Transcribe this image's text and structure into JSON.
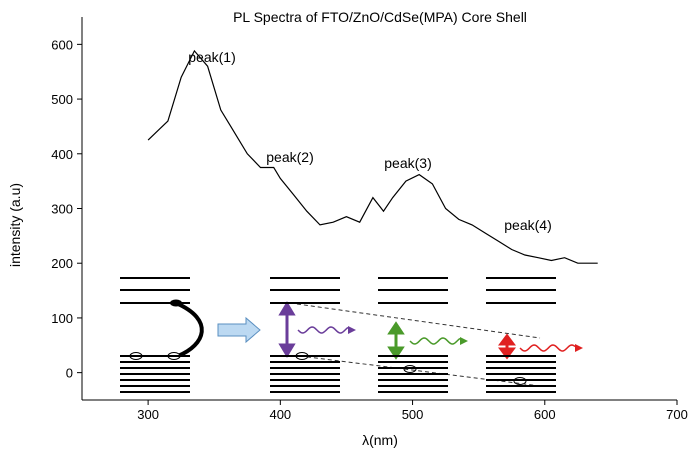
{
  "chart_data": {
    "type": "line",
    "title": "PL Spectra of  FTO/ZnO/CdSe(MPA) Core Shell",
    "x_label": "λ(nm)",
    "y_label": "intensity (a.u)",
    "xlim": [
      250,
      700
    ],
    "ylim": [
      -50,
      650
    ],
    "xticks": [
      300,
      400,
      500,
      600,
      700
    ],
    "yticks": [
      0,
      100,
      200,
      300,
      400,
      500,
      600
    ],
    "annotations": [
      "peak(1)",
      "peak(2)",
      "peak(3)",
      "peak(4)"
    ],
    "series": [
      {
        "color": "#000000",
        "x": [
          300,
          315,
          325,
          335,
          345,
          355,
          365,
          375,
          385,
          395,
          400,
          410,
          420,
          430,
          440,
          450,
          460,
          470,
          478,
          485,
          495,
          505,
          515,
          525,
          535,
          545,
          555,
          565,
          575,
          585,
          595,
          605,
          615,
          625,
          640
        ],
        "values": [
          425,
          460,
          540,
          588,
          560,
          480,
          440,
          400,
          375,
          375,
          355,
          325,
          295,
          270,
          275,
          285,
          275,
          320,
          295,
          320,
          350,
          362,
          345,
          300,
          280,
          270,
          255,
          240,
          225,
          215,
          210,
          205,
          210,
          200,
          200
        ]
      }
    ]
  }
}
